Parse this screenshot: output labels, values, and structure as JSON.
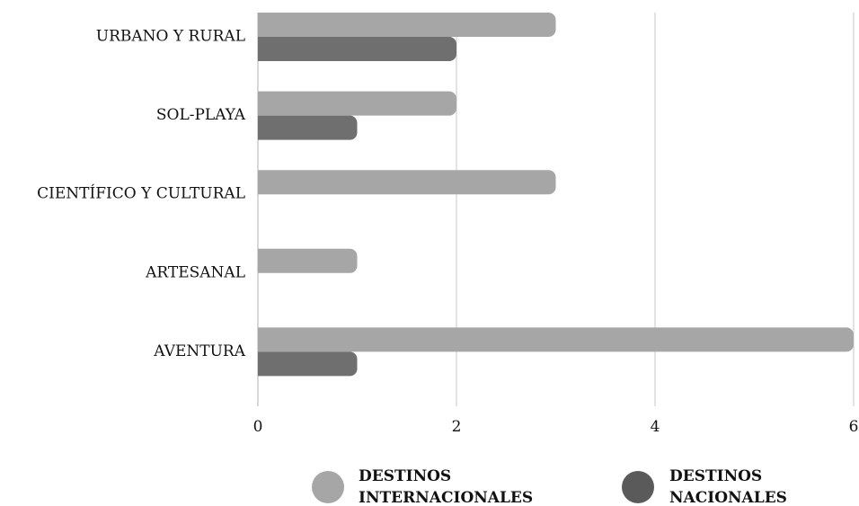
{
  "chart_data": {
    "type": "bar",
    "orientation": "horizontal",
    "categories": [
      "URBANO Y RURAL",
      "SOL-PLAYA",
      "CIENTÍFICO Y CULTURAL",
      "ARTESANAL",
      "AVENTURA"
    ],
    "series": [
      {
        "name": "DESTINOS INTERNACIONALES",
        "values": [
          3,
          2,
          3,
          1,
          6
        ],
        "color": "#a6a6a6"
      },
      {
        "name": "DESTINOS NACIONALES",
        "values": [
          2,
          1,
          0,
          0,
          1
        ],
        "color": "#6f6f6f"
      }
    ],
    "title": "",
    "xlabel": "",
    "ylabel": "",
    "xlim": [
      0,
      6
    ],
    "xticks": [
      0,
      2,
      4,
      6
    ],
    "xtick_labels": [
      "0",
      "2",
      "4",
      "6"
    ],
    "grid": "vertical",
    "legend": {
      "position": "bottom",
      "entries": [
        {
          "lines": [
            "DESTINOS",
            "INTERNACIONALES"
          ],
          "color": "#a6a6a6"
        },
        {
          "lines": [
            "DESTINOS",
            "NACIONALES"
          ],
          "color": "#5a5a5a"
        }
      ]
    }
  }
}
